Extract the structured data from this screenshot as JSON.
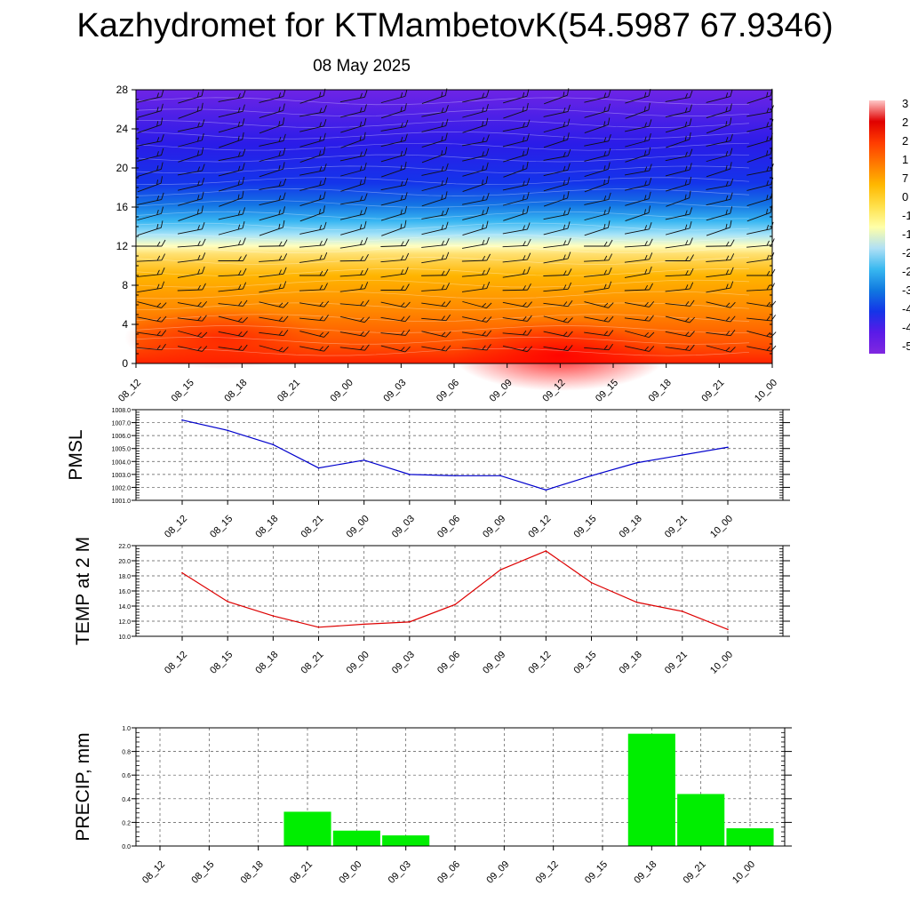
{
  "title": "Kazhydromet for KTMambetovK(54.5987 67.9346)",
  "subtitle": "08 May 2025",
  "time_labels": [
    "08_12",
    "08_15",
    "08_18",
    "08_21",
    "09_00",
    "09_03",
    "09_06",
    "09_09",
    "09_12",
    "09_15",
    "09_18",
    "09_21",
    "10_00"
  ],
  "chart_data": [
    {
      "type": "heatmap",
      "title": "Kazhydromet for KTMambetovK(54.5987 67.9346)",
      "subtitle": "08 May 2025",
      "x": [
        "08_12",
        "08_15",
        "08_18",
        "08_21",
        "09_00",
        "09_03",
        "09_06",
        "09_09",
        "09_12",
        "09_15",
        "09_18",
        "09_21",
        "10_00"
      ],
      "y_ticks": [
        0,
        4,
        8,
        12,
        16,
        20,
        24,
        28
      ],
      "ylim": [
        0,
        28
      ],
      "colorbar_visible_labels": [
        "3",
        "2",
        "2",
        "1",
        "7",
        "0",
        "-1",
        "-1",
        "-2",
        "-2",
        "-3",
        "-4",
        "-4",
        "-5"
      ],
      "colorbar_colors": [
        "#ffc8c8",
        "#e00000",
        "#ff3c00",
        "#ff7a00",
        "#ffb800",
        "#ffe04a",
        "#ffffa8",
        "#b0e0f5",
        "#38b8f0",
        "#1078e0",
        "#1434e8",
        "#5a1ae8",
        "#8028e0"
      ],
      "wind_barbs": true
    },
    {
      "type": "line",
      "ylabel": "PMSL",
      "x": [
        "08_12",
        "08_15",
        "08_18",
        "08_21",
        "09_00",
        "09_03",
        "09_06",
        "09_09",
        "09_12",
        "09_15",
        "09_18",
        "09_21",
        "10_00"
      ],
      "values": [
        1007.2,
        1006.4,
        1005.3,
        1003.5,
        1004.1,
        1003.0,
        1002.9,
        1002.9,
        1001.8,
        1002.9,
        1003.9,
        1004.5,
        1005.1
      ],
      "ylim": [
        1001.0,
        1008.0
      ],
      "yticks": [
        "1001.0",
        "1002.0",
        "1003.0",
        "1004.0",
        "1005.0",
        "1006.0",
        "1007.0",
        "1008.0"
      ],
      "color": "#0000cc",
      "grid": true
    },
    {
      "type": "line",
      "ylabel": "TEMP at 2 M",
      "x": [
        "08_12",
        "08_15",
        "08_18",
        "08_21",
        "09_00",
        "09_03",
        "09_06",
        "09_09",
        "09_12",
        "09_15",
        "09_18",
        "09_21",
        "10_00"
      ],
      "values": [
        18.4,
        14.6,
        12.7,
        11.2,
        11.6,
        11.9,
        14.2,
        18.8,
        21.3,
        17.1,
        14.5,
        13.3,
        10.9
      ],
      "ylim": [
        10.0,
        22.0
      ],
      "yticks": [
        "10.0",
        "12.0",
        "14.0",
        "16.0",
        "18.0",
        "20.0",
        "22.0"
      ],
      "color": "#dd0000",
      "grid": true
    },
    {
      "type": "bar",
      "ylabel": "PRECIP, mm",
      "categories": [
        "08_12",
        "08_15",
        "08_18",
        "08_21",
        "09_00",
        "09_03",
        "09_06",
        "09_09",
        "09_12",
        "09_15",
        "09_18",
        "09_21",
        "10_00"
      ],
      "values": [
        0,
        0,
        0,
        0.29,
        0.13,
        0.09,
        0,
        0,
        0,
        0,
        0.95,
        0.44,
        0.15
      ],
      "ylim": [
        0,
        1.0
      ],
      "yticks": [
        "0.0",
        "0.2",
        "0.4",
        "0.6",
        "0.8",
        "1.0"
      ],
      "color": "#00ee00",
      "grid": true
    }
  ]
}
